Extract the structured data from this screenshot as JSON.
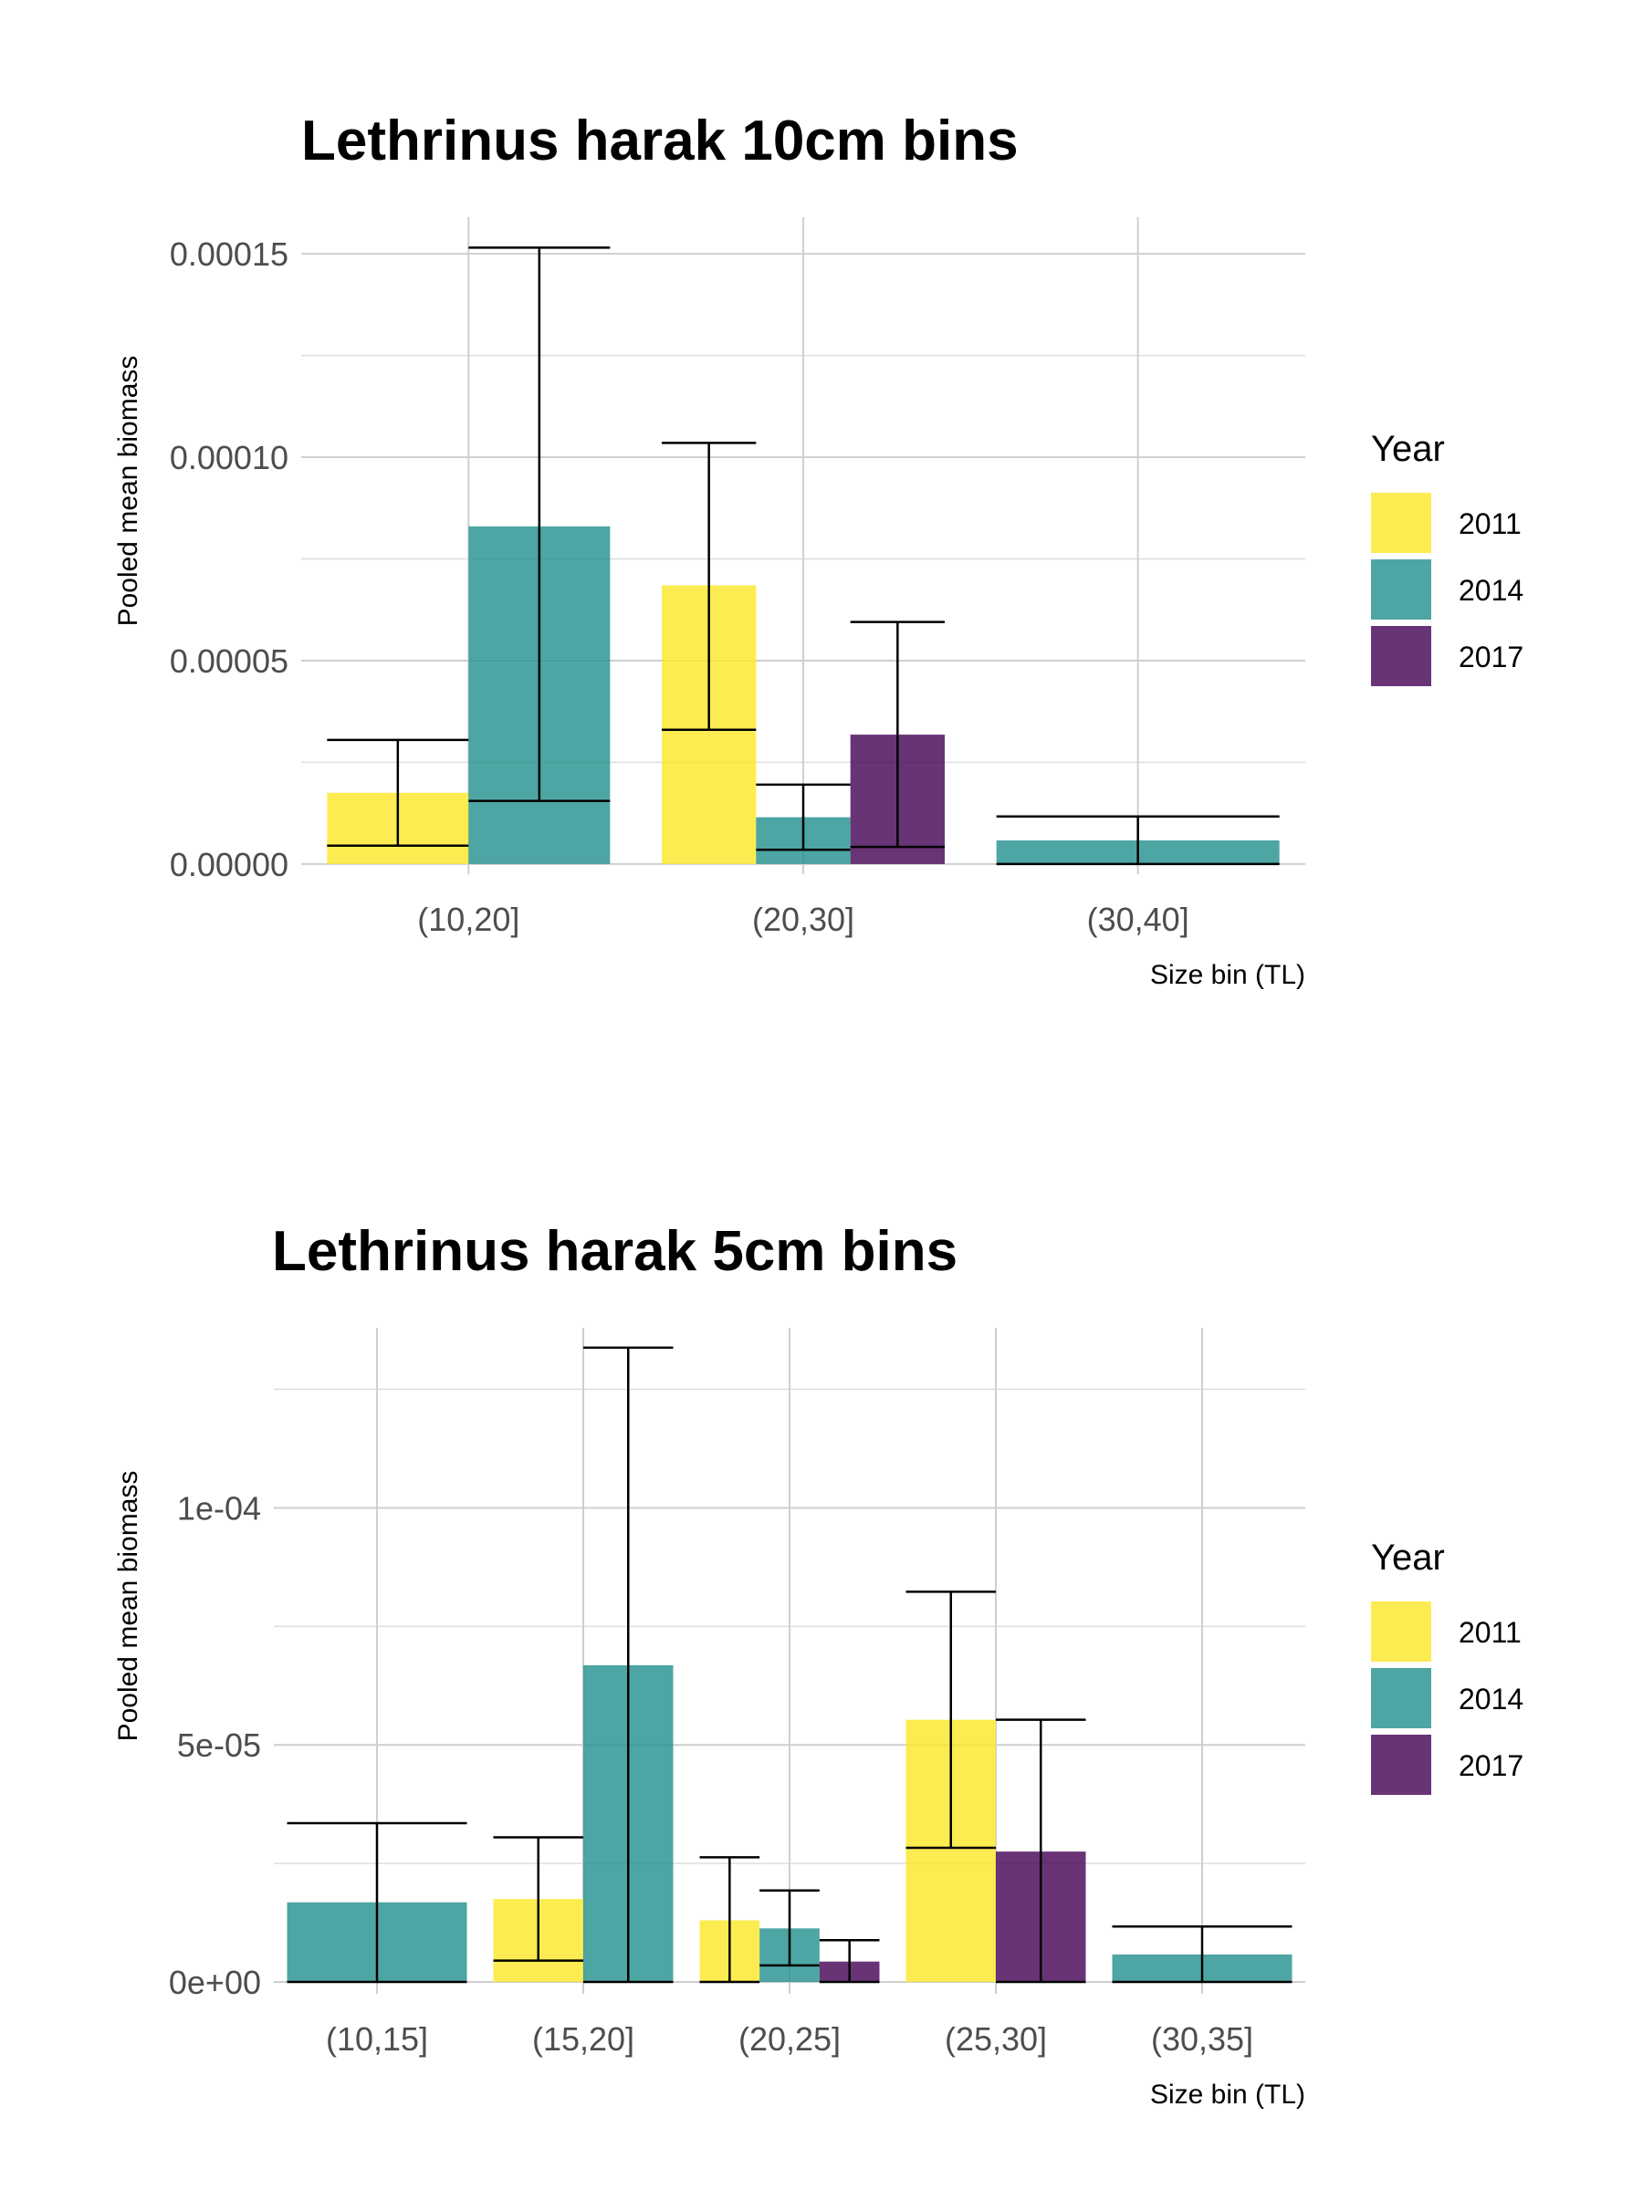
{
  "colors": {
    "y2011": "#FDE725",
    "y2014": "#21908C",
    "y2017": "#440154"
  },
  "chart_data": [
    {
      "type": "bar",
      "title": "Lethrinus harak 10cm bins",
      "xlabel": "Size bin (TL)",
      "ylabel": "Pooled mean biomass",
      "categories": [
        "(10,20]",
        "(20,30]",
        "(30,40]"
      ],
      "ylim": [
        -2.5e-06,
        0.000159
      ],
      "yticks": [
        0,
        5e-05,
        0.0001,
        0.00015
      ],
      "ytick_labels": [
        "0.00000",
        "0.00005",
        "0.00010",
        "0.00015"
      ],
      "grid": true,
      "legend": {
        "title": "Year",
        "position": "right",
        "entries": [
          "2011",
          "2014",
          "2017"
        ]
      },
      "series": [
        {
          "name": "2011",
          "color": "#FDE725",
          "values": [
            1.75e-05,
            6.85e-05,
            null
          ],
          "err_low": [
            4.5e-06,
            3.3e-05,
            null
          ],
          "err_high": [
            3.05e-05,
            0.0001035,
            null
          ]
        },
        {
          "name": "2014",
          "color": "#21908C",
          "values": [
            8.3e-05,
            1.15e-05,
            5.8e-06
          ],
          "err_low": [
            1.55e-05,
            3.5e-06,
            0
          ],
          "err_high": [
            0.0001515,
            1.95e-05,
            1.17e-05
          ]
        },
        {
          "name": "2017",
          "color": "#440154",
          "values": [
            null,
            3.18e-05,
            null
          ],
          "err_low": [
            null,
            4.2e-06,
            null
          ],
          "err_high": [
            null,
            5.95e-05,
            null
          ]
        }
      ]
    },
    {
      "type": "bar",
      "title": "Lethrinus harak 5cm bins",
      "xlabel": "Size bin (TL)",
      "ylabel": "Pooled mean biomass",
      "categories": [
        "(10,15]",
        "(15,20]",
        "(20,25]",
        "(25,30]",
        "(30,35]"
      ],
      "ylim": [
        -2.5e-06,
        0.000138
      ],
      "yticks": [
        0,
        5e-05,
        0.0001
      ],
      "ytick_labels": [
        "0e+00",
        "5e-05",
        "1e-04"
      ],
      "grid": true,
      "legend": {
        "title": "Year",
        "position": "right",
        "entries": [
          "2011",
          "2014",
          "2017"
        ]
      },
      "series": [
        {
          "name": "2011",
          "color": "#FDE725",
          "values": [
            null,
            1.75e-05,
            1.3e-05,
            5.53e-05,
            null
          ],
          "err_low": [
            null,
            4.5e-06,
            0,
            2.83e-05,
            null
          ],
          "err_high": [
            null,
            3.05e-05,
            2.63e-05,
            8.23e-05,
            null
          ]
        },
        {
          "name": "2014",
          "color": "#21908C",
          "values": [
            1.68e-05,
            6.68e-05,
            1.13e-05,
            null,
            5.8e-06
          ],
          "err_low": [
            0,
            0,
            3.5e-06,
            null,
            0
          ],
          "err_high": [
            3.35e-05,
            0.0001338,
            1.93e-05,
            null,
            1.17e-05
          ]
        },
        {
          "name": "2017",
          "color": "#440154",
          "values": [
            null,
            null,
            4.3e-06,
            2.75e-05,
            null
          ],
          "err_low": [
            null,
            null,
            0,
            0,
            null
          ],
          "err_high": [
            null,
            null,
            8.8e-06,
            5.53e-05,
            null
          ]
        }
      ]
    }
  ]
}
